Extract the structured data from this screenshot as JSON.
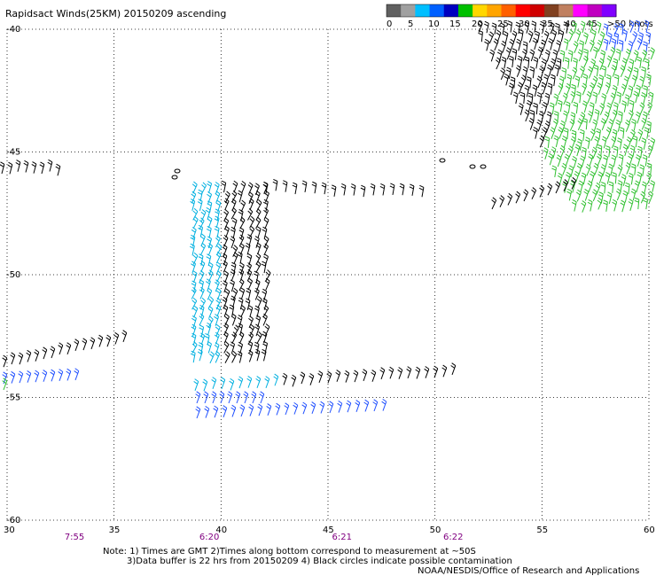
{
  "title": "Rapidsact Winds(25KM) 20150209 ascending",
  "legend": {
    "labels": [
      "0",
      "5",
      "10",
      "15",
      "20",
      "25",
      "30",
      "35",
      "40",
      "45",
      ">50 knots"
    ],
    "colors": [
      "#606060",
      "#a0a0a0",
      "#00bfff",
      "#0060ff",
      "#0000c0",
      "#00c000",
      "#ffd700",
      "#ffa500",
      "#ff6000",
      "#ff0000",
      "#d00000",
      "#804020",
      "#c08060",
      "#ff00ff",
      "#c000c0",
      "#8000ff"
    ]
  },
  "axes": {
    "lon_labels": [
      "30",
      "35",
      "40",
      "45",
      "50",
      "55",
      "60"
    ],
    "lat_labels": [
      "-40",
      "-45",
      "-50",
      "-55",
      "-60"
    ],
    "lon_range": [
      30,
      60
    ],
    "lat_range": [
      -40,
      -60
    ]
  },
  "time_labels": [
    {
      "text": "7:55",
      "lon": 33.1
    },
    {
      "text": "6:20",
      "lon": 39.4
    },
    {
      "text": "6:21",
      "lon": 45.6
    },
    {
      "text": "6:22",
      "lon": 50.8
    }
  ],
  "notes": {
    "line1": "Note: 1) Times are GMT 2)Times along bottom correspond to measurement at ~50S",
    "line2": "3)Data buffer is 22 hrs from 20150209 4) Black circles indicate possible contamination",
    "line3": "NOAA/NESDIS/Office of Research and Applications"
  },
  "colors": {
    "black_barb": "#000000",
    "cyan_barb": "#00b0e0",
    "blue_barb": "#2050ff",
    "green_barb": "#30c030",
    "grid": "#000000"
  }
}
